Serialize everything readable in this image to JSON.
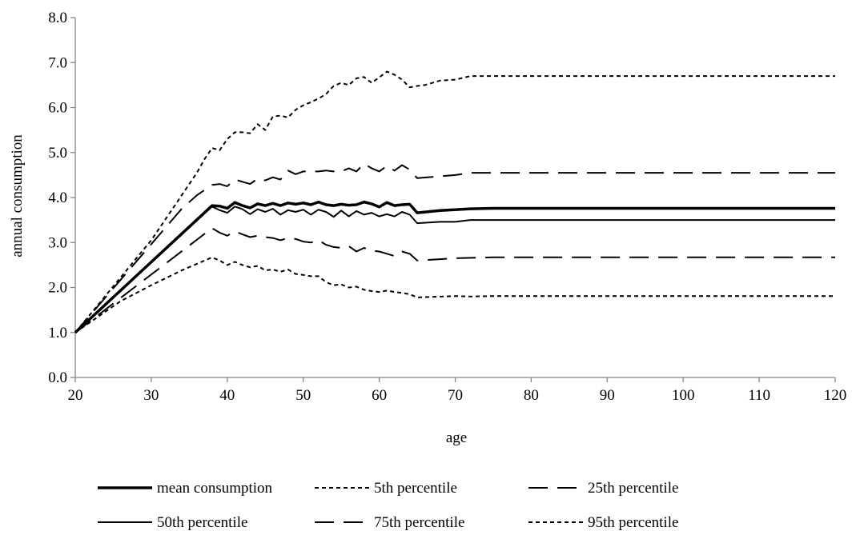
{
  "chart_data": {
    "type": "line",
    "title": "",
    "xlabel": "age",
    "ylabel": "annual consumption",
    "xlim": [
      20,
      120
    ],
    "ylim": [
      0,
      8
    ],
    "xticks": [
      20,
      30,
      40,
      50,
      60,
      70,
      80,
      90,
      100,
      110,
      120
    ],
    "yticks": [
      0,
      1,
      2,
      3,
      4,
      5,
      6,
      7,
      8
    ],
    "x_tick_labels": [
      "20",
      "30",
      "40",
      "50",
      "60",
      "70",
      "80",
      "90",
      "100",
      "110",
      "120"
    ],
    "y_tick_labels": [
      "0.0",
      "1.0",
      "2.0",
      "3.0",
      "4.0",
      "5.0",
      "6.0",
      "7.0",
      "8.0"
    ],
    "grid": false,
    "legend_position": "bottom",
    "series": [
      {
        "name": "mean consumption",
        "style": "solid-thick",
        "x": [
          20,
          38,
          39,
          40,
          41,
          42,
          43,
          44,
          45,
          46,
          47,
          48,
          49,
          50,
          51,
          52,
          53,
          54,
          55,
          56,
          57,
          58,
          59,
          60,
          61,
          62,
          63,
          64,
          65,
          68,
          72,
          75,
          120
        ],
        "y": [
          1.0,
          3.82,
          3.81,
          3.76,
          3.89,
          3.82,
          3.77,
          3.86,
          3.82,
          3.87,
          3.82,
          3.88,
          3.85,
          3.88,
          3.84,
          3.9,
          3.84,
          3.82,
          3.85,
          3.83,
          3.84,
          3.9,
          3.86,
          3.79,
          3.89,
          3.82,
          3.84,
          3.85,
          3.66,
          3.71,
          3.75,
          3.76,
          3.76
        ]
      },
      {
        "name": "5th percentile",
        "style": "short-dash",
        "x": [
          20,
          26,
          30,
          34,
          38,
          39,
          40,
          41,
          42,
          43,
          44,
          45,
          46,
          47,
          48,
          49,
          50,
          51,
          52,
          53,
          54,
          55,
          56,
          57,
          58,
          59,
          60,
          61,
          62,
          63,
          64,
          65,
          70,
          72,
          75,
          120
        ],
        "y": [
          1.0,
          1.7,
          2.05,
          2.38,
          2.67,
          2.6,
          2.5,
          2.57,
          2.5,
          2.45,
          2.48,
          2.38,
          2.4,
          2.35,
          2.4,
          2.3,
          2.28,
          2.25,
          2.25,
          2.12,
          2.05,
          2.07,
          2.0,
          2.02,
          1.95,
          1.92,
          1.9,
          1.93,
          1.9,
          1.88,
          1.85,
          1.78,
          1.81,
          1.8,
          1.81,
          1.81
        ]
      },
      {
        "name": "25th percentile",
        "style": "long-dash",
        "x": [
          20,
          38,
          39,
          40,
          41,
          42,
          43,
          44,
          45,
          46,
          47,
          48,
          49,
          50,
          51,
          52,
          53,
          54,
          55,
          56,
          57,
          58,
          59,
          60,
          61,
          62,
          63,
          64,
          65,
          68,
          70,
          75,
          120
        ],
        "y": [
          1.0,
          3.32,
          3.22,
          3.15,
          3.25,
          3.18,
          3.12,
          3.15,
          3.12,
          3.1,
          3.05,
          3.1,
          3.08,
          3.02,
          3.0,
          3.05,
          2.95,
          2.9,
          2.88,
          2.92,
          2.8,
          2.88,
          2.82,
          2.8,
          2.75,
          2.7,
          2.8,
          2.75,
          2.6,
          2.63,
          2.65,
          2.67,
          2.67
        ]
      },
      {
        "name": "50th percentile",
        "style": "solid",
        "x": [
          20,
          38,
          39,
          40,
          41,
          42,
          43,
          44,
          45,
          46,
          47,
          48,
          49,
          50,
          51,
          52,
          53,
          54,
          55,
          56,
          57,
          58,
          59,
          60,
          61,
          62,
          63,
          64,
          65,
          68,
          70,
          72,
          75,
          120
        ],
        "y": [
          1.0,
          3.8,
          3.72,
          3.66,
          3.8,
          3.74,
          3.63,
          3.74,
          3.68,
          3.75,
          3.62,
          3.72,
          3.68,
          3.73,
          3.62,
          3.73,
          3.68,
          3.57,
          3.71,
          3.58,
          3.7,
          3.62,
          3.66,
          3.58,
          3.63,
          3.58,
          3.68,
          3.62,
          3.43,
          3.46,
          3.46,
          3.5,
          3.5,
          3.5
        ]
      },
      {
        "name": "75th percentile",
        "style": "long-dash",
        "x": [
          20,
          34,
          36,
          38,
          39,
          40,
          41,
          42,
          43,
          44,
          45,
          46,
          47,
          48,
          49,
          50,
          51,
          52,
          53,
          54,
          55,
          56,
          57,
          58,
          59,
          60,
          61,
          62,
          63,
          64,
          65,
          70,
          72,
          120
        ],
        "y": [
          1.0,
          3.75,
          4.05,
          4.28,
          4.3,
          4.25,
          4.4,
          4.35,
          4.3,
          4.42,
          4.38,
          4.45,
          4.4,
          4.6,
          4.52,
          4.58,
          4.58,
          4.58,
          4.6,
          4.58,
          4.58,
          4.65,
          4.58,
          4.75,
          4.65,
          4.58,
          4.7,
          4.6,
          4.72,
          4.62,
          4.43,
          4.5,
          4.55,
          4.55
        ]
      },
      {
        "name": "95th percentile",
        "style": "short-dash",
        "x": [
          20,
          30,
          33,
          36,
          37,
          38,
          39,
          40,
          41,
          42,
          43,
          44,
          45,
          46,
          47,
          48,
          49,
          50,
          51,
          52,
          53,
          54,
          55,
          56,
          57,
          58,
          59,
          60,
          61,
          62,
          63,
          64,
          65,
          66,
          68,
          70,
          72,
          75,
          120
        ],
        "y": [
          1.0,
          3.05,
          3.8,
          4.55,
          4.85,
          5.1,
          5.05,
          5.3,
          5.45,
          5.45,
          5.43,
          5.63,
          5.5,
          5.8,
          5.82,
          5.78,
          5.95,
          6.05,
          6.12,
          6.2,
          6.3,
          6.48,
          6.55,
          6.5,
          6.65,
          6.68,
          6.55,
          6.67,
          6.8,
          6.73,
          6.62,
          6.45,
          6.48,
          6.5,
          6.6,
          6.62,
          6.7,
          6.7,
          6.7
        ]
      }
    ],
    "legend_order": [
      0,
      1,
      2,
      3,
      4,
      5
    ],
    "colors": {
      "line": "#000000",
      "axis": "#868686",
      "text": "#000000"
    }
  }
}
